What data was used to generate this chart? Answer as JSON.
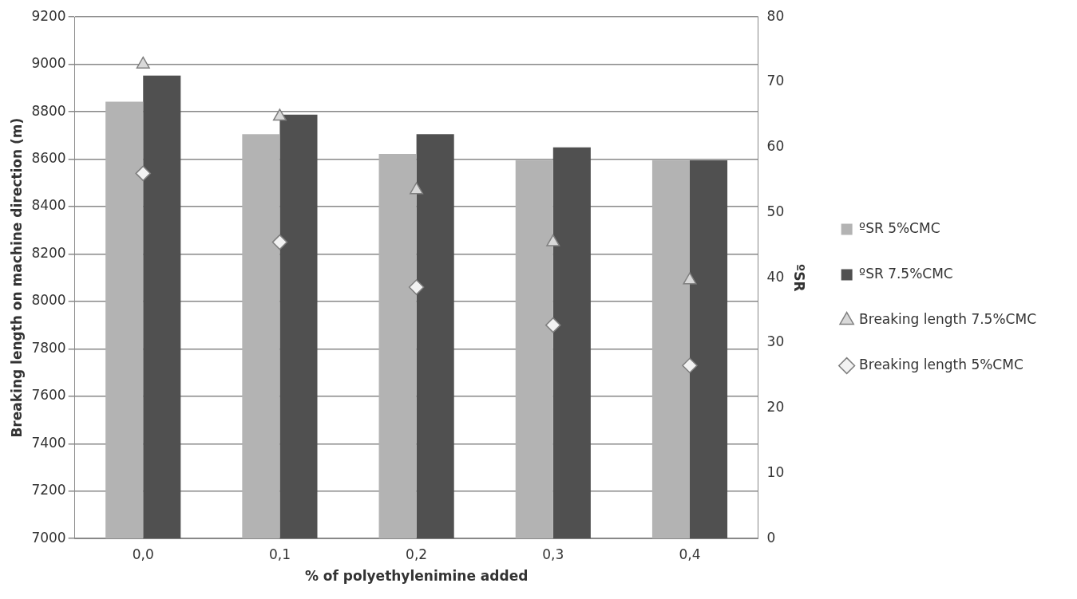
{
  "chart_data": {
    "type": "bar",
    "xlabel": "% of polyethylenimine added",
    "ylabel": "Breaking length on machine direction (m)",
    "y2label": "ºSR",
    "categories": [
      "0,0",
      "0,1",
      "0,2",
      "0,3",
      "0,4"
    ],
    "series": [
      {
        "name": "ºSR 5%CMC",
        "axis": "y2",
        "color": "#b3b3b3",
        "values": [
          67,
          62,
          59,
          58,
          58
        ]
      },
      {
        "name": "ºSR 7.5%CMC",
        "axis": "y2",
        "color": "#505050",
        "values": [
          71,
          65,
          62,
          60,
          58
        ]
      },
      {
        "name": "Breaking length 7.5%CMC",
        "type": "scatter",
        "marker": "triangle",
        "color": "#d9d9d9",
        "x": [
          "0,0",
          "0,1",
          "0,2",
          "0,3",
          "0,4"
        ],
        "values": [
          9000,
          8780,
          8470,
          8250,
          8090
        ]
      },
      {
        "name": "Breaking length 5%CMC",
        "type": "scatter",
        "marker": "diamond",
        "color": "#f2f2f2",
        "x": [
          "0,0",
          "0,1",
          "0,2",
          "0,3",
          "0,4"
        ],
        "values": [
          8540,
          8250,
          8060,
          7900,
          7730
        ]
      }
    ],
    "ylim": [
      7000,
      9200
    ],
    "yticks": [
      7000,
      7200,
      7400,
      7600,
      7800,
      8000,
      8200,
      8400,
      8600,
      8800,
      9000,
      9200
    ],
    "y2lim": [
      0,
      80
    ],
    "y2ticks": [
      0,
      10,
      20,
      30,
      40,
      50,
      60,
      70,
      80
    ],
    "grid": "y",
    "legend": "right"
  }
}
